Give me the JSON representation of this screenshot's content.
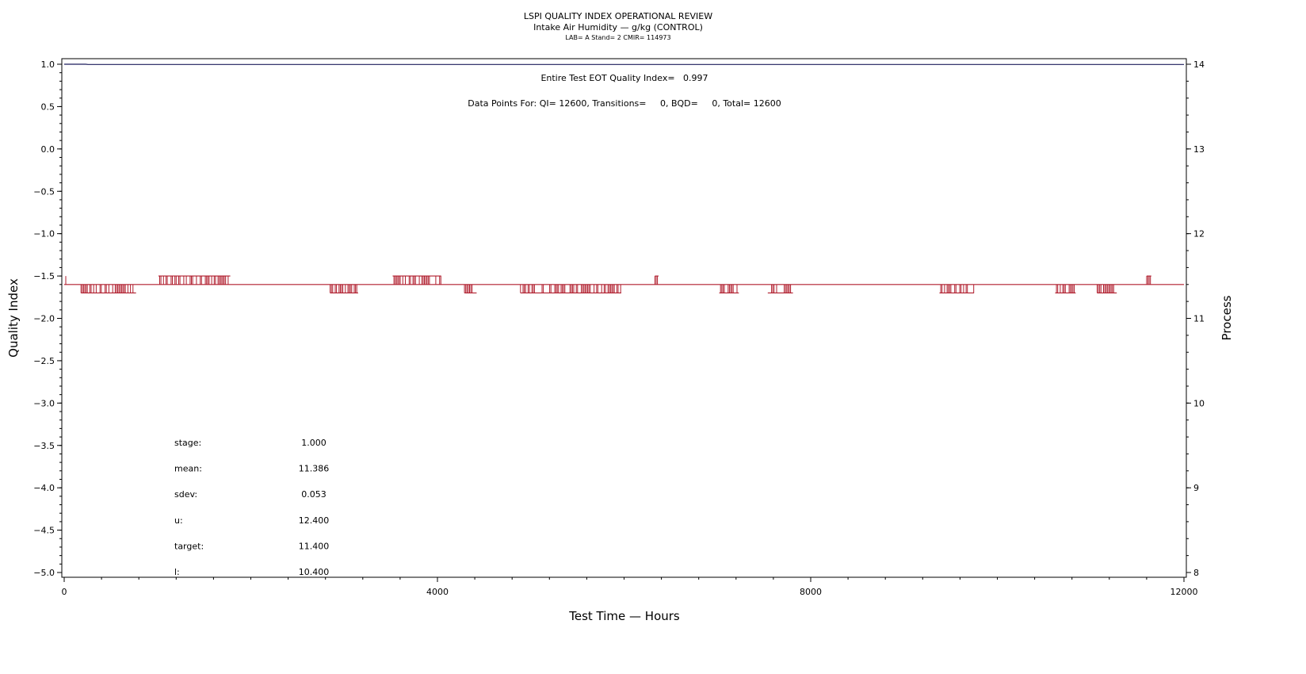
{
  "chart_data": {
    "type": "line",
    "title": "LSPI QUALITY INDEX OPERATIONAL REVIEW",
    "subtitle": "Intake Air Humidity — g/kg (CONTROL)",
    "subtitle2": "LAB= A Stand= 2 CMIR= 114973",
    "xlabel": "Test Time — Hours",
    "ylabel_left": "Quality Index",
    "ylabel_right": "Process",
    "xlim": [
      0,
      12000
    ],
    "ylim_left": [
      -5.0,
      1.0
    ],
    "ylim_right": [
      8,
      14
    ],
    "x_ticks": [
      "0",
      "4000",
      "8000",
      "12000"
    ],
    "y_left_ticks": [
      "1.0",
      "0.5",
      "0.0",
      "−0.5",
      "−1.0",
      "−1.5",
      "−2.0",
      "−2.5",
      "−3.0",
      "−3.5",
      "−4.0",
      "−4.5",
      "−5.0"
    ],
    "y_right_ticks": [
      "14",
      "13",
      "12",
      "11",
      "10",
      "9",
      "8"
    ],
    "annotations": {
      "qi_text": "Entire Test EOT Quality Index=   0.997",
      "points_text": "Data Points For: QI= 12600, Transitions=     0, BQD=     0, Total= 12600"
    },
    "stats": [
      {
        "label": "stage:",
        "value": "1.000"
      },
      {
        "label": "mean:",
        "value": "11.386"
      },
      {
        "label": "sdev:",
        "value": "0.053"
      },
      {
        "label": "u:",
        "value": "12.400"
      },
      {
        "label": "target:",
        "value": "11.400"
      },
      {
        "label": "l:",
        "value": "10.400"
      }
    ],
    "series": [
      {
        "axis": "left",
        "color": "#1c1c5c",
        "baseline": 0.997,
        "start_value": 1.0,
        "start_until": 230
      },
      {
        "axis": "right",
        "color": "#b01e2e",
        "baseline": 11.4,
        "high_value": 11.5,
        "low_value": 11.3,
        "high_segments": [
          [
            1010,
            1780
          ],
          [
            3520,
            4040
          ],
          [
            6330,
            6370
          ],
          [
            11600,
            11650
          ]
        ],
        "low_segments": [
          [
            180,
            770
          ],
          [
            2850,
            3150
          ],
          [
            4290,
            4420
          ],
          [
            4890,
            5970
          ],
          [
            7020,
            7230
          ],
          [
            7540,
            7810
          ],
          [
            9380,
            9750
          ],
          [
            10620,
            10840
          ],
          [
            11070,
            11280
          ]
        ]
      }
    ]
  }
}
